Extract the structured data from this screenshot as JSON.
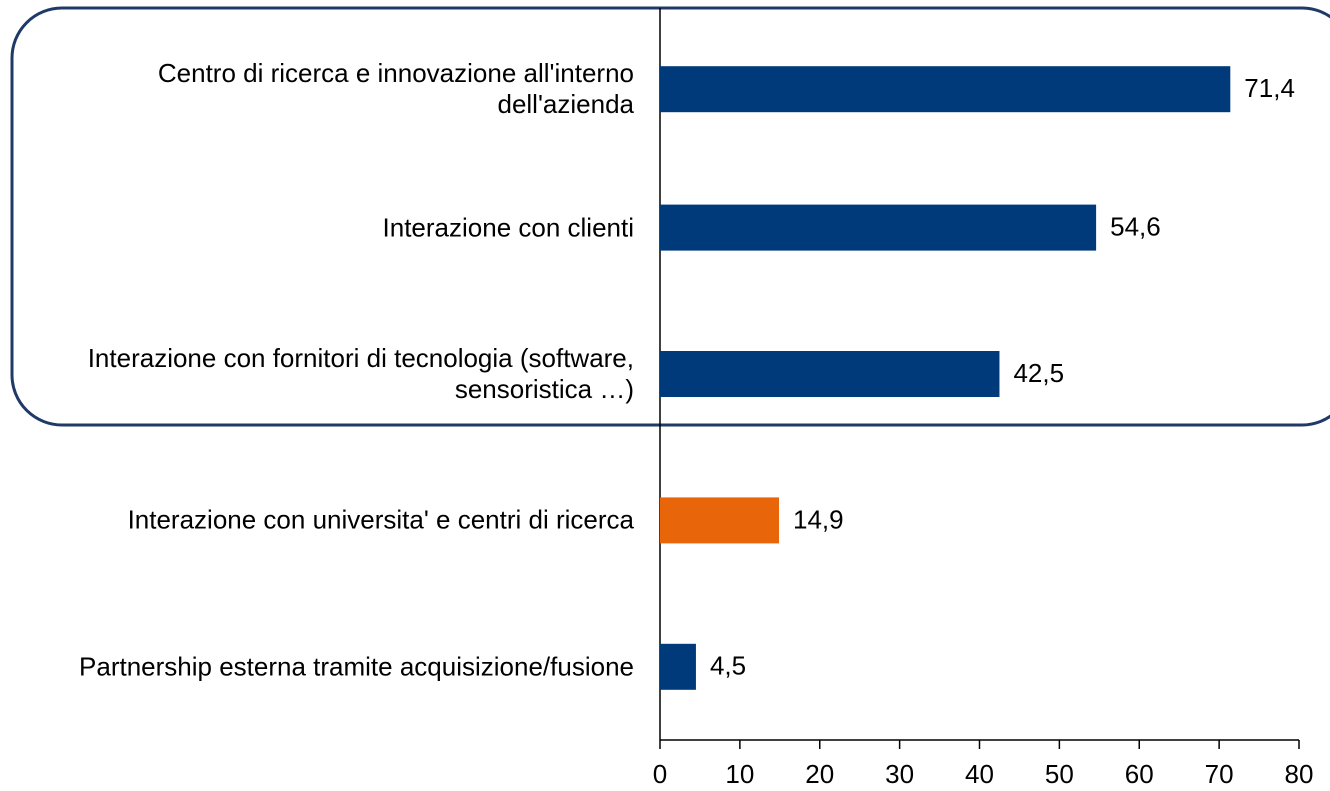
{
  "chart_data": {
    "type": "bar",
    "orientation": "horizontal",
    "categories": [
      "Centro di ricerca e innovazione all'interno dell'azienda",
      "Interazione con clienti",
      "Interazione con fornitori di tecnologia (software, sensoristica …)",
      "Interazione con universita' e centri di ricerca",
      "Partnership esterna tramite acquisizione/fusione"
    ],
    "values": [
      71.4,
      54.6,
      42.5,
      14.9,
      4.5
    ],
    "value_labels": [
      "71,4",
      "54,6",
      "42,5",
      "14,9",
      "4,5"
    ],
    "colors": [
      "#003a7a",
      "#003a7a",
      "#003a7a",
      "#e8650a",
      "#003a7a"
    ],
    "xlim": [
      0,
      80
    ],
    "xticks": [
      0,
      10,
      20,
      30,
      40,
      50,
      60,
      70,
      80
    ],
    "grid": false
  }
}
